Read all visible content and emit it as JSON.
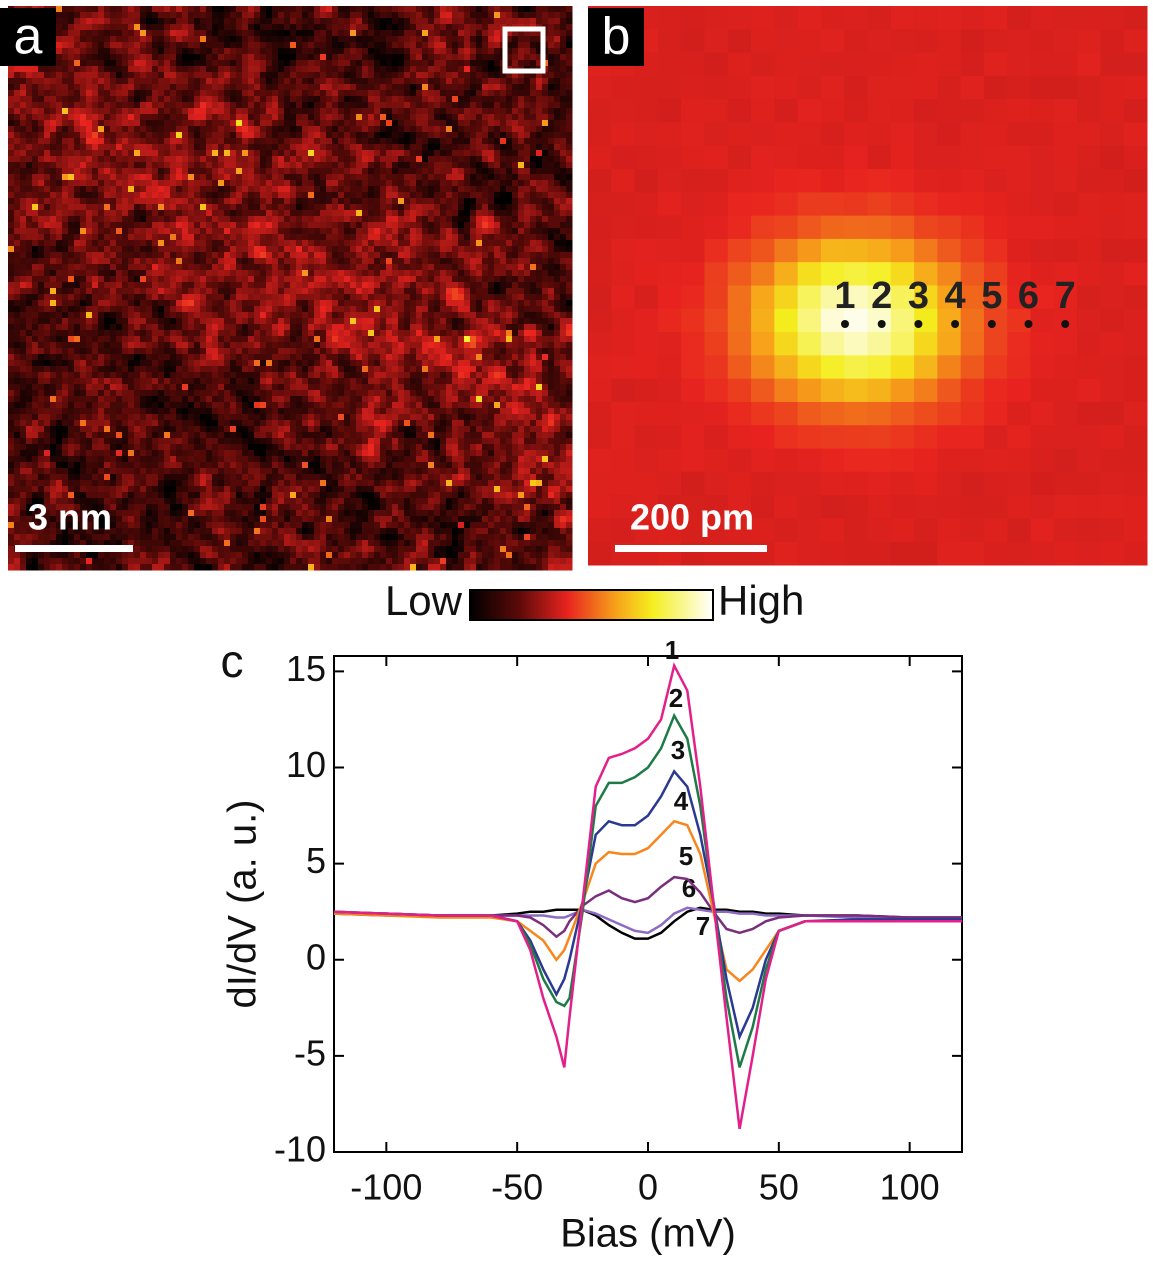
{
  "panel_a": {
    "label": "a",
    "scale_bar": "3 nm"
  },
  "panel_b": {
    "label": "b",
    "scale_bar": "200 pm",
    "points": [
      "1",
      "2",
      "3",
      "4",
      "5",
      "6",
      "7"
    ]
  },
  "colorbar": {
    "low": "Low",
    "high": "High"
  },
  "chart_data": {
    "type": "line",
    "panel_label": "c",
    "x_label": "Bias (mV)",
    "y_label": "dI/dV (a. u.)",
    "x": [
      -120,
      -100,
      -80,
      -60,
      -50,
      -45,
      -40,
      -35,
      -32,
      -30,
      -25,
      -20,
      -15,
      -10,
      -5,
      0,
      5,
      10,
      15,
      20,
      25,
      30,
      35,
      40,
      45,
      50,
      60,
      80,
      100,
      120
    ],
    "series": [
      {
        "name": "1",
        "color": "#e3208a",
        "values": [
          2.5,
          2.4,
          2.3,
          2.3,
          2.0,
          0.5,
          -2,
          -4,
          -5.6,
          -3,
          3,
          9,
          10.5,
          10.7,
          11,
          11.5,
          12.5,
          15.3,
          14,
          9,
          3,
          -3,
          -8.8,
          -5,
          -1,
          1.5,
          2.0,
          2.0,
          2.0,
          2.0
        ]
      },
      {
        "name": "2",
        "color": "#1e7a46",
        "values": [
          2.5,
          2.4,
          2.3,
          2.3,
          2.0,
          0.8,
          -1,
          -2.2,
          -2.4,
          -2,
          2.5,
          8,
          9.2,
          9.2,
          9.5,
          10,
          11,
          12.7,
          11.5,
          8,
          3,
          -2,
          -5.6,
          -3.5,
          -0.5,
          1.5,
          2,
          2,
          2,
          2
        ]
      },
      {
        "name": "3",
        "color": "#2b3990",
        "values": [
          2.5,
          2.4,
          2.3,
          2.3,
          2.0,
          1,
          -0.5,
          -1.8,
          -1,
          0,
          3,
          6.5,
          7.2,
          7,
          7,
          7.5,
          8.5,
          9.8,
          9,
          6.5,
          3,
          -1,
          -4,
          -2.5,
          0,
          1.5,
          2,
          2.1,
          2.1,
          2.1
        ]
      },
      {
        "name": "4",
        "color": "#f7861d",
        "values": [
          2.4,
          2.3,
          2.2,
          2.2,
          2.0,
          1.5,
          1,
          0,
          0.5,
          1.2,
          3,
          5,
          5.6,
          5.5,
          5.5,
          5.8,
          6.5,
          7.2,
          7,
          5.5,
          2.5,
          -0.5,
          -1.1,
          -0.5,
          0.5,
          1.5,
          2,
          2,
          2,
          2
        ]
      },
      {
        "name": "5",
        "color": "#7b2d7e",
        "values": [
          2.4,
          2.3,
          2.3,
          2.3,
          2.3,
          2.2,
          1.8,
          1.2,
          1.5,
          2,
          2.8,
          3.3,
          3.6,
          3.2,
          3,
          3.2,
          3.8,
          4.3,
          4.2,
          3.5,
          2.5,
          1.6,
          1.4,
          1.6,
          2,
          2.2,
          2.3,
          2.3,
          2.2,
          2.2
        ]
      },
      {
        "name": "6",
        "color": "#8c6bc1",
        "values": [
          2.4,
          2.4,
          2.3,
          2.3,
          2.3,
          2.3,
          2.3,
          2.2,
          2.2,
          2.3,
          2.6,
          2.4,
          2.1,
          1.8,
          1.5,
          1.4,
          1.8,
          2.4,
          2.7,
          2.6,
          2.5,
          2.5,
          2.4,
          2.4,
          2.3,
          2.3,
          2.3,
          2.2,
          2.2,
          2.2
        ]
      },
      {
        "name": "7",
        "color": "#000000",
        "values": [
          2.4,
          2.4,
          2.3,
          2.3,
          2.4,
          2.5,
          2.5,
          2.6,
          2.6,
          2.6,
          2.6,
          2.3,
          1.8,
          1.4,
          1.1,
          1.1,
          1.4,
          2.0,
          2.5,
          2.7,
          2.6,
          2.6,
          2.5,
          2.5,
          2.4,
          2.4,
          2.3,
          2.3,
          2.2,
          2.2
        ]
      }
    ],
    "xlim": [
      -120,
      120
    ],
    "ylim": [
      -10,
      15.8
    ],
    "xticks": [
      -100,
      -50,
      0,
      50,
      100
    ],
    "yticks": [
      -10,
      -5,
      0,
      5,
      10,
      15
    ]
  }
}
